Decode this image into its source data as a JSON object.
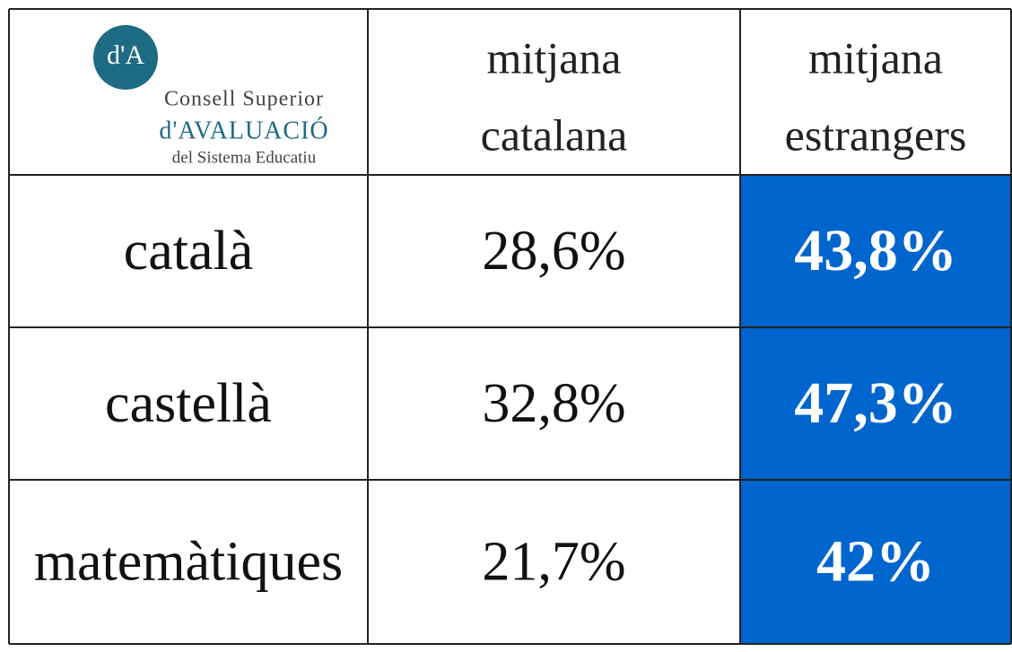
{
  "logo": {
    "mark": "d'A",
    "lines": [
      "Consell Superior",
      "d'AVALUACIÓ",
      "del Sistema Educatiu"
    ]
  },
  "table": {
    "header": [
      [
        "mitjana",
        "catalana"
      ],
      [
        "mitjana",
        "estrangers"
      ]
    ],
    "rows": [
      [
        "català",
        "28,6%",
        "43,8%"
      ],
      [
        "castellà",
        "32,8%",
        "47,3%"
      ],
      [
        "matemàtiques",
        "21,7%",
        "42%"
      ]
    ]
  }
}
